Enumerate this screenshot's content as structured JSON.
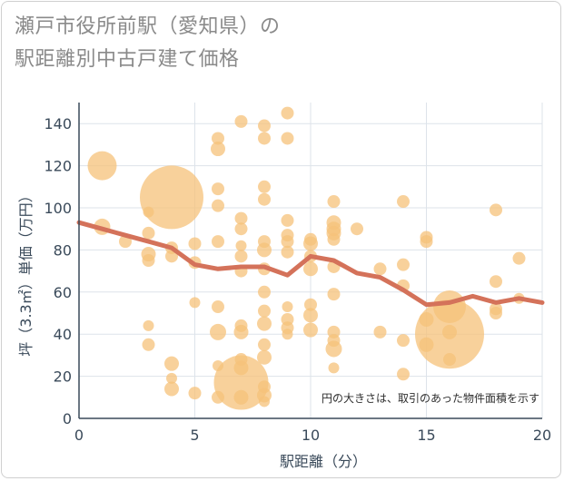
{
  "title_line1": "瀬戸市役所前駅（愛知県）の",
  "title_line2": "駅距離別中古戸建て価格",
  "note": "円の大きさは、取引のあった物件面積を示す",
  "colors": {
    "bubble": "#f5c27a",
    "line": "#d4725a",
    "grid": "#dde3ea",
    "axis": "#3a4a5a"
  },
  "chart_data": {
    "type": "scatter",
    "xlabel": "駅距離（分）",
    "ylabel": "坪（3.3㎡）単価（万円）",
    "xlim": [
      0,
      20
    ],
    "ylim": [
      0,
      150
    ],
    "xticks": [
      0,
      5,
      10,
      15,
      20
    ],
    "yticks": [
      0,
      20,
      40,
      60,
      80,
      100,
      120,
      140
    ],
    "grid": true,
    "bubbles": [
      {
        "x": 1,
        "y": 120,
        "r": 16
      },
      {
        "x": 1,
        "y": 91,
        "r": 9
      },
      {
        "x": 2,
        "y": 84,
        "r": 7
      },
      {
        "x": 3,
        "y": 98,
        "r": 6
      },
      {
        "x": 3,
        "y": 88,
        "r": 7
      },
      {
        "x": 3,
        "y": 78,
        "r": 8
      },
      {
        "x": 3,
        "y": 75,
        "r": 7
      },
      {
        "x": 3,
        "y": 44,
        "r": 6
      },
      {
        "x": 3,
        "y": 35,
        "r": 7
      },
      {
        "x": 4,
        "y": 105,
        "r": 35
      },
      {
        "x": 4,
        "y": 81,
        "r": 7
      },
      {
        "x": 4,
        "y": 77,
        "r": 7
      },
      {
        "x": 4,
        "y": 26,
        "r": 8
      },
      {
        "x": 4,
        "y": 19,
        "r": 6
      },
      {
        "x": 4,
        "y": 14,
        "r": 8
      },
      {
        "x": 5,
        "y": 83,
        "r": 7
      },
      {
        "x": 5,
        "y": 74,
        "r": 7
      },
      {
        "x": 5,
        "y": 55,
        "r": 6
      },
      {
        "x": 5,
        "y": 12,
        "r": 7
      },
      {
        "x": 6,
        "y": 133,
        "r": 7
      },
      {
        "x": 6,
        "y": 128,
        "r": 8
      },
      {
        "x": 6,
        "y": 109,
        "r": 7
      },
      {
        "x": 6,
        "y": 101,
        "r": 7
      },
      {
        "x": 6,
        "y": 84,
        "r": 7
      },
      {
        "x": 6,
        "y": 53,
        "r": 7
      },
      {
        "x": 6,
        "y": 41,
        "r": 9
      },
      {
        "x": 6,
        "y": 25,
        "r": 6
      },
      {
        "x": 6,
        "y": 10,
        "r": 7
      },
      {
        "x": 7,
        "y": 141,
        "r": 7
      },
      {
        "x": 7,
        "y": 95,
        "r": 7
      },
      {
        "x": 7,
        "y": 90,
        "r": 7
      },
      {
        "x": 7,
        "y": 82,
        "r": 6
      },
      {
        "x": 7,
        "y": 77,
        "r": 7
      },
      {
        "x": 7,
        "y": 70,
        "r": 7
      },
      {
        "x": 7,
        "y": 44,
        "r": 7
      },
      {
        "x": 7,
        "y": 41,
        "r": 8
      },
      {
        "x": 7,
        "y": 28,
        "r": 7
      },
      {
        "x": 7,
        "y": 24,
        "r": 8
      },
      {
        "x": 7,
        "y": 17,
        "r": 30
      },
      {
        "x": 7,
        "y": 10,
        "r": 8
      },
      {
        "x": 8,
        "y": 139,
        "r": 7
      },
      {
        "x": 8,
        "y": 133,
        "r": 7
      },
      {
        "x": 8,
        "y": 110,
        "r": 7
      },
      {
        "x": 8,
        "y": 104,
        "r": 7
      },
      {
        "x": 8,
        "y": 84,
        "r": 7
      },
      {
        "x": 8,
        "y": 80,
        "r": 8
      },
      {
        "x": 8,
        "y": 71,
        "r": 7
      },
      {
        "x": 8,
        "y": 60,
        "r": 7
      },
      {
        "x": 8,
        "y": 51,
        "r": 7
      },
      {
        "x": 8,
        "y": 45,
        "r": 8
      },
      {
        "x": 8,
        "y": 35,
        "r": 7
      },
      {
        "x": 8,
        "y": 29,
        "r": 8
      },
      {
        "x": 8,
        "y": 15,
        "r": 7
      },
      {
        "x": 8,
        "y": 11,
        "r": 8
      },
      {
        "x": 8,
        "y": 8,
        "r": 6
      },
      {
        "x": 9,
        "y": 145,
        "r": 7
      },
      {
        "x": 9,
        "y": 133,
        "r": 7
      },
      {
        "x": 9,
        "y": 94,
        "r": 7
      },
      {
        "x": 9,
        "y": 87,
        "r": 7
      },
      {
        "x": 9,
        "y": 84,
        "r": 7
      },
      {
        "x": 9,
        "y": 79,
        "r": 7
      },
      {
        "x": 9,
        "y": 53,
        "r": 6
      },
      {
        "x": 9,
        "y": 47,
        "r": 7
      },
      {
        "x": 9,
        "y": 43,
        "r": 7
      },
      {
        "x": 9,
        "y": 40,
        "r": 6
      },
      {
        "x": 10,
        "y": 85,
        "r": 7
      },
      {
        "x": 10,
        "y": 83,
        "r": 8
      },
      {
        "x": 10,
        "y": 77,
        "r": 7
      },
      {
        "x": 10,
        "y": 71,
        "r": 8
      },
      {
        "x": 10,
        "y": 54,
        "r": 7
      },
      {
        "x": 10,
        "y": 49,
        "r": 8
      },
      {
        "x": 10,
        "y": 42,
        "r": 8
      },
      {
        "x": 11,
        "y": 103,
        "r": 7
      },
      {
        "x": 11,
        "y": 93,
        "r": 8
      },
      {
        "x": 11,
        "y": 90,
        "r": 8
      },
      {
        "x": 11,
        "y": 88,
        "r": 8
      },
      {
        "x": 11,
        "y": 85,
        "r": 7
      },
      {
        "x": 11,
        "y": 72,
        "r": 7
      },
      {
        "x": 11,
        "y": 59,
        "r": 7
      },
      {
        "x": 11,
        "y": 41,
        "r": 7
      },
      {
        "x": 11,
        "y": 37,
        "r": 7
      },
      {
        "x": 11,
        "y": 33,
        "r": 9
      },
      {
        "x": 11,
        "y": 24,
        "r": 6
      },
      {
        "x": 12,
        "y": 90,
        "r": 7
      },
      {
        "x": 13,
        "y": 71,
        "r": 7
      },
      {
        "x": 13,
        "y": 41,
        "r": 7
      },
      {
        "x": 14,
        "y": 103,
        "r": 7
      },
      {
        "x": 14,
        "y": 73,
        "r": 7
      },
      {
        "x": 14,
        "y": 63,
        "r": 7
      },
      {
        "x": 14,
        "y": 37,
        "r": 7
      },
      {
        "x": 14,
        "y": 21,
        "r": 7
      },
      {
        "x": 15,
        "y": 86,
        "r": 7
      },
      {
        "x": 15,
        "y": 84,
        "r": 7
      },
      {
        "x": 15,
        "y": 47,
        "r": 8
      },
      {
        "x": 15,
        "y": 35,
        "r": 8
      },
      {
        "x": 16,
        "y": 53,
        "r": 18
      },
      {
        "x": 16,
        "y": 40,
        "r": 38
      },
      {
        "x": 16,
        "y": 41,
        "r": 8
      },
      {
        "x": 16,
        "y": 28,
        "r": 7
      },
      {
        "x": 18,
        "y": 99,
        "r": 7
      },
      {
        "x": 18,
        "y": 65,
        "r": 7
      },
      {
        "x": 18,
        "y": 52,
        "r": 7
      },
      {
        "x": 18,
        "y": 50,
        "r": 7
      },
      {
        "x": 19,
        "y": 76,
        "r": 7
      },
      {
        "x": 19,
        "y": 57,
        "r": 6
      }
    ],
    "trend": {
      "x": [
        0,
        1,
        2,
        3,
        4,
        5,
        6,
        7,
        8,
        9,
        10,
        11,
        12,
        13,
        14,
        15,
        16,
        17,
        18,
        19,
        20
      ],
      "y": [
        93,
        90,
        87,
        84,
        81,
        73,
        71,
        72,
        72,
        68,
        77,
        75,
        69,
        67,
        61,
        54,
        55,
        58,
        55,
        57,
        55
      ]
    }
  }
}
